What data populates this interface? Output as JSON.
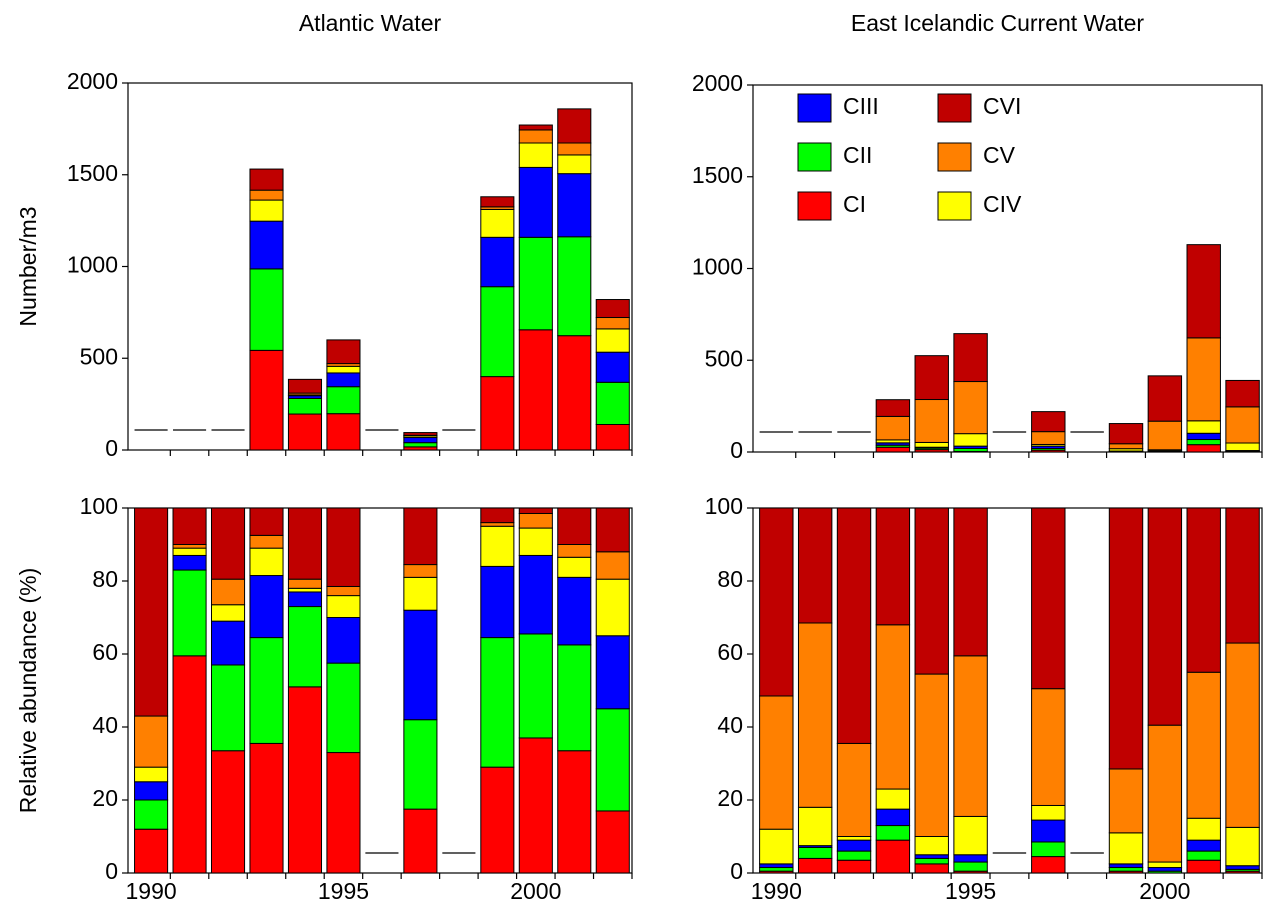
{
  "chart_data": [
    {
      "type": "stacked-bar",
      "title": "Atlantic Water",
      "ylabel": "Number/m3",
      "x": [
        1990,
        1991,
        1992,
        1993,
        1994,
        1995,
        1996,
        1997,
        1998,
        1999,
        2000,
        2001,
        2002
      ],
      "xlim": [
        1989.4,
        2002.5
      ],
      "ylim": [
        0,
        2000
      ],
      "yticks": [
        0,
        500,
        1000,
        1500,
        2000
      ],
      "series": [
        {
          "name": "CI",
          "color": "#ff0000",
          "values": [
            null,
            null,
            null,
            543,
            196,
            198,
            null,
            17,
            null,
            400,
            655,
            623,
            139
          ]
        },
        {
          "name": "CII",
          "color": "#00ff00",
          "values": [
            null,
            null,
            null,
            444,
            85,
            147,
            null,
            23,
            null,
            490,
            504,
            539,
            230
          ]
        },
        {
          "name": "CIII",
          "color": "#0000ff",
          "values": [
            null,
            null,
            null,
            260,
            15,
            75,
            null,
            28,
            null,
            269,
            381,
            344,
            164
          ]
        },
        {
          "name": "CIV",
          "color": "#ffff00",
          "values": [
            null,
            null,
            null,
            115,
            4,
            36,
            null,
            9,
            null,
            152,
            133,
            102,
            127
          ]
        },
        {
          "name": "CV",
          "color": "#ff8000",
          "values": [
            null,
            null,
            null,
            54,
            10,
            15,
            null,
            3,
            null,
            14,
            71,
            65,
            62
          ]
        },
        {
          "name": "CVI",
          "color": "#c00000",
          "values": [
            null,
            null,
            null,
            115,
            75,
            129,
            null,
            15,
            null,
            55,
            27,
            186,
            98
          ]
        }
      ]
    },
    {
      "type": "stacked-bar",
      "title": "East Icelandic Current Water",
      "legend": "upper left",
      "x": [
        1990,
        1991,
        1992,
        1993,
        1994,
        1995,
        1996,
        1997,
        1998,
        1999,
        2000,
        2001,
        2002
      ],
      "xlim": [
        1989.4,
        2002.5
      ],
      "ylim": [
        0,
        2000
      ],
      "yticks": [
        0,
        500,
        1000,
        1500,
        2000
      ],
      "series": [
        {
          "name": "CI",
          "color": "#ff0000",
          "values": [
            null,
            null,
            null,
            26,
            13,
            3,
            null,
            10,
            null,
            1,
            0,
            40,
            2
          ]
        },
        {
          "name": "CII",
          "color": "#00ff00",
          "values": [
            null,
            null,
            null,
            11,
            8,
            16,
            null,
            9,
            null,
            2,
            2,
            28,
            2
          ]
        },
        {
          "name": "CIII",
          "color": "#0000ff",
          "values": [
            null,
            null,
            null,
            13,
            5,
            13,
            null,
            13,
            null,
            2,
            4,
            34,
            4
          ]
        },
        {
          "name": "CIV",
          "color": "#ffff00",
          "values": [
            null,
            null,
            null,
            16,
            26,
            68,
            null,
            9,
            null,
            13,
            6,
            68,
            41
          ]
        },
        {
          "name": "CV",
          "color": "#ff8000",
          "values": [
            null,
            null,
            null,
            128,
            234,
            284,
            null,
            70,
            null,
            27,
            156,
            452,
            197
          ]
        },
        {
          "name": "CVI",
          "color": "#c00000",
          "values": [
            null,
            null,
            null,
            91,
            239,
            261,
            null,
            109,
            null,
            110,
            247,
            508,
            144
          ]
        }
      ]
    },
    {
      "type": "stacked-bar",
      "ylabel": "Relative abundance (%)",
      "x": [
        1990,
        1991,
        1992,
        1993,
        1994,
        1995,
        1996,
        1997,
        1998,
        1999,
        2000,
        2001,
        2002
      ],
      "xlim": [
        1989.4,
        2002.5
      ],
      "xticks": [
        1990,
        1995,
        2000
      ],
      "ylim": [
        0,
        100
      ],
      "yticks": [
        0,
        20,
        40,
        60,
        80,
        100
      ],
      "series": [
        {
          "name": "CI",
          "color": "#ff0000",
          "values": [
            12,
            59.5,
            33.5,
            35.5,
            51,
            33,
            null,
            17.5,
            null,
            29,
            37,
            33.5,
            17
          ]
        },
        {
          "name": "CII",
          "color": "#00ff00",
          "values": [
            8,
            23.5,
            23.5,
            29,
            22,
            24.5,
            null,
            24.5,
            null,
            35.5,
            28.5,
            29,
            28
          ]
        },
        {
          "name": "CIII",
          "color": "#0000ff",
          "values": [
            5,
            4,
            12,
            17,
            4,
            12.5,
            null,
            30,
            null,
            19.5,
            21.5,
            18.5,
            20
          ]
        },
        {
          "name": "CIV",
          "color": "#ffff00",
          "values": [
            4,
            2,
            4.5,
            7.5,
            1,
            6,
            null,
            9,
            null,
            11,
            7.5,
            5.5,
            15.5
          ]
        },
        {
          "name": "CV",
          "color": "#ff8000",
          "values": [
            14,
            1,
            7,
            3.5,
            2.5,
            2.5,
            null,
            3.5,
            null,
            1,
            4,
            3.5,
            7.5
          ]
        },
        {
          "name": "CVI",
          "color": "#c00000",
          "values": [
            57,
            10,
            19.5,
            7.5,
            19.5,
            21.5,
            null,
            15.5,
            null,
            4,
            1.5,
            10,
            12
          ]
        }
      ]
    },
    {
      "type": "stacked-bar",
      "x": [
        1990,
        1991,
        1992,
        1993,
        1994,
        1995,
        1996,
        1997,
        1998,
        1999,
        2000,
        2001,
        2002
      ],
      "xlim": [
        1989.4,
        2002.5
      ],
      "xticks": [
        1990,
        1995,
        2000
      ],
      "ylim": [
        0,
        100
      ],
      "yticks": [
        0,
        20,
        40,
        60,
        80,
        100
      ],
      "series": [
        {
          "name": "CI",
          "color": "#ff0000",
          "values": [
            0.5,
            4,
            3.5,
            9,
            2.5,
            0.5,
            null,
            4.5,
            null,
            0.5,
            0,
            3.5,
            0.5
          ]
        },
        {
          "name": "CII",
          "color": "#00ff00",
          "values": [
            1,
            3,
            2.5,
            4,
            1.5,
            2.5,
            null,
            4,
            null,
            1,
            0.5,
            2.5,
            0.5
          ]
        },
        {
          "name": "CIII",
          "color": "#0000ff",
          "values": [
            1,
            0.5,
            3,
            4.5,
            1,
            2,
            null,
            6,
            null,
            1,
            1,
            3,
            1
          ]
        },
        {
          "name": "CIV",
          "color": "#ffff00",
          "values": [
            9.5,
            10.5,
            1,
            5.5,
            5,
            10.5,
            null,
            4,
            null,
            8.5,
            1.5,
            6,
            10.5
          ]
        },
        {
          "name": "CV",
          "color": "#ff8000",
          "values": [
            36.5,
            50.5,
            25.5,
            45,
            44.5,
            44,
            null,
            32,
            null,
            17.5,
            37.5,
            40,
            50.5
          ]
        },
        {
          "name": "CVI",
          "color": "#c00000",
          "values": [
            51.5,
            31.5,
            64.5,
            32,
            45.5,
            40.5,
            null,
            49.5,
            null,
            71.5,
            59.5,
            45,
            37
          ]
        }
      ]
    }
  ]
}
